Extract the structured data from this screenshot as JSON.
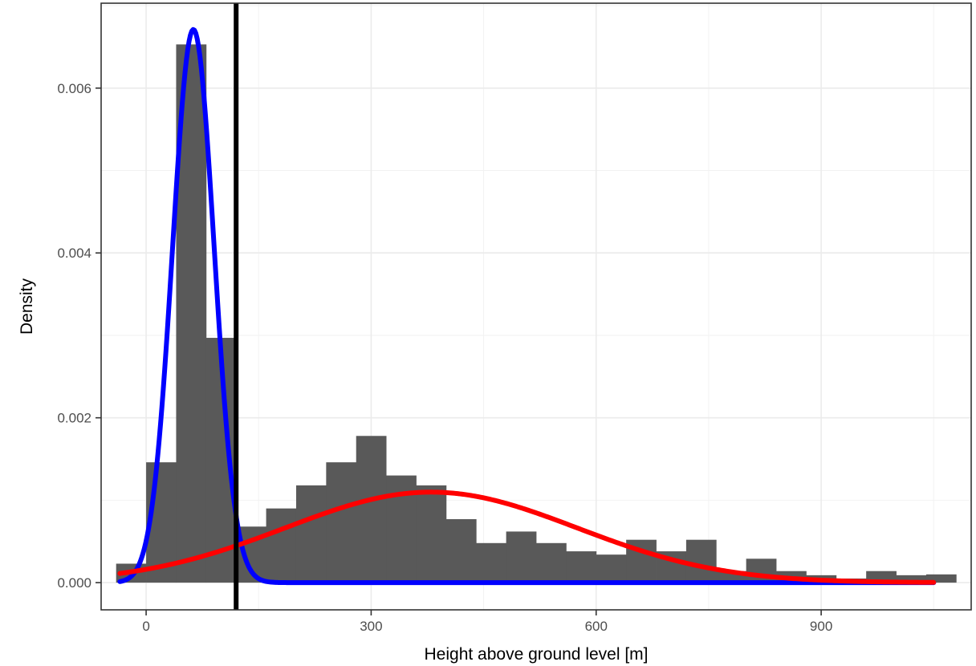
{
  "chart_data": {
    "type": "histogram",
    "xlabel": "Height above ground level [m]",
    "ylabel": "Density",
    "xlim": [
      -60,
      1100
    ],
    "ylim": [
      -0.00033,
      0.00703
    ],
    "x_ticks": [
      0,
      300,
      600,
      900
    ],
    "x_tick_labels": [
      "0",
      "300",
      "600",
      "900"
    ],
    "y_ticks": [
      0,
      0.002,
      0.004,
      0.006
    ],
    "y_tick_labels": [
      "0.000",
      "0.002",
      "0.004",
      "0.006"
    ],
    "grid": true,
    "histogram": {
      "bin_width": 40,
      "fill": "#595959",
      "bins": [
        {
          "x0": -40,
          "density": 0.00023
        },
        {
          "x0": 0,
          "density": 0.00146
        },
        {
          "x0": 40,
          "density": 0.00653
        },
        {
          "x0": 80,
          "density": 0.00297
        },
        {
          "x0": 120,
          "density": 0.00068
        },
        {
          "x0": 160,
          "density": 0.0009
        },
        {
          "x0": 200,
          "density": 0.00118
        },
        {
          "x0": 240,
          "density": 0.00146
        },
        {
          "x0": 280,
          "density": 0.00178
        },
        {
          "x0": 320,
          "density": 0.0013
        },
        {
          "x0": 360,
          "density": 0.00118
        },
        {
          "x0": 400,
          "density": 0.00077
        },
        {
          "x0": 440,
          "density": 0.00048
        },
        {
          "x0": 480,
          "density": 0.00062
        },
        {
          "x0": 520,
          "density": 0.00048
        },
        {
          "x0": 560,
          "density": 0.00038
        },
        {
          "x0": 600,
          "density": 0.00034
        },
        {
          "x0": 640,
          "density": 0.00052
        },
        {
          "x0": 680,
          "density": 0.00038
        },
        {
          "x0": 720,
          "density": 0.00052
        },
        {
          "x0": 760,
          "density": 0.00014
        },
        {
          "x0": 800,
          "density": 0.00029
        },
        {
          "x0": 840,
          "density": 0.00014
        },
        {
          "x0": 880,
          "density": 9e-05
        },
        {
          "x0": 920,
          "density": 5e-05
        },
        {
          "x0": 960,
          "density": 0.00014
        },
        {
          "x0": 1000,
          "density": 9e-05
        },
        {
          "x0": 1040,
          "density": 0.0001
        }
      ]
    },
    "curves": [
      {
        "kind": "normal",
        "color": "#0000ff",
        "weight": 0.466,
        "mean": 63,
        "sd": 27.7,
        "x_range": [
          -35,
          1050
        ]
      },
      {
        "kind": "normal",
        "color": "#ff0000",
        "weight": 0.534,
        "mean": 380,
        "sd": 194,
        "x_range": [
          -35,
          1050
        ]
      }
    ],
    "threshold_line": {
      "x": 120,
      "color": "#000000"
    }
  }
}
